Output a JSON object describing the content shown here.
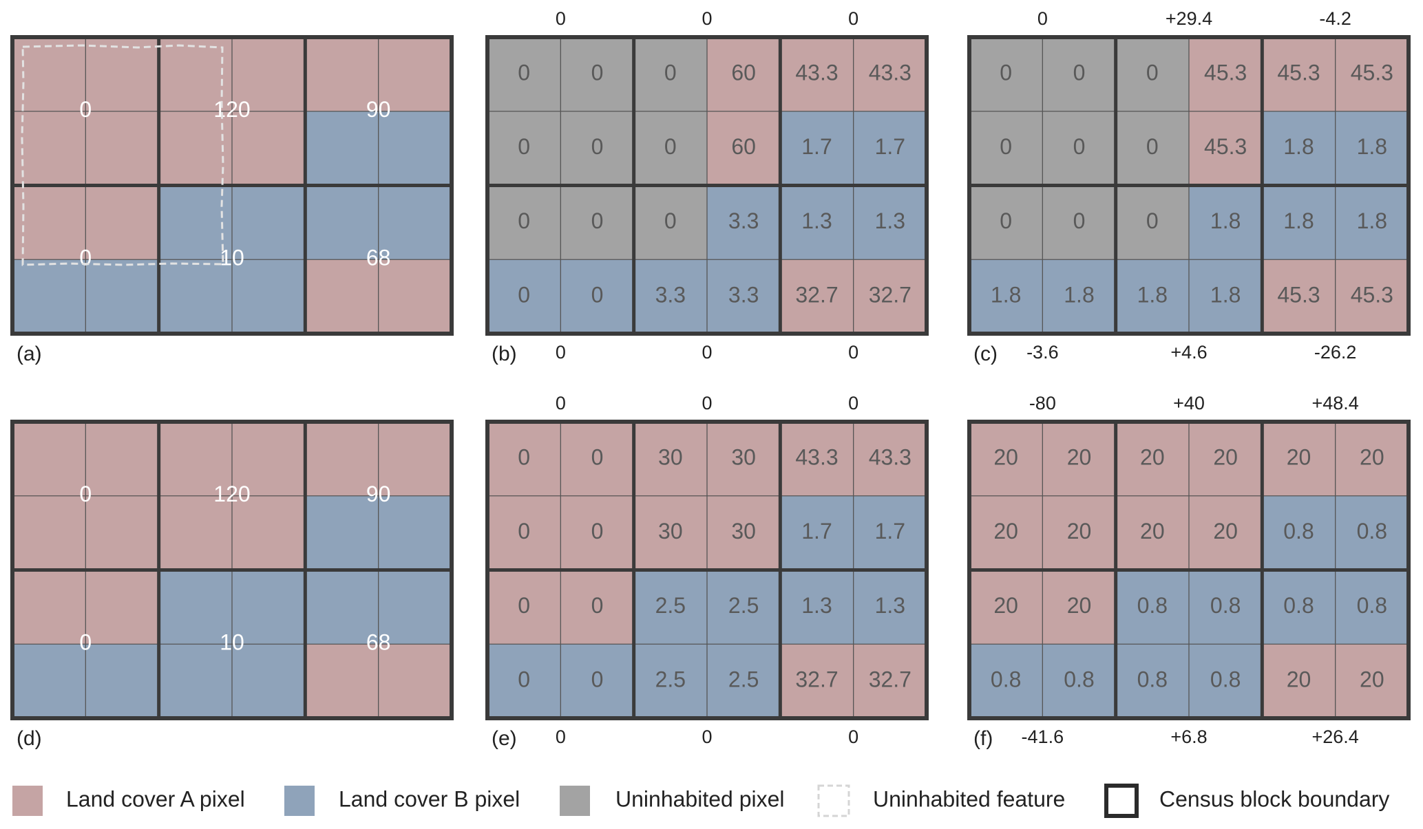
{
  "panels": [
    {
      "label": "(a)",
      "blocks": [
        [
          "0",
          "120",
          "90"
        ],
        [
          "0",
          "10",
          "68"
        ]
      ]
    },
    {
      "label": "(b)",
      "top": [
        "0",
        "0",
        "0"
      ],
      "bottom": [
        "0",
        "0",
        "0"
      ],
      "cells": [
        [
          "0",
          "0",
          "0",
          "60",
          "43.3",
          "43.3"
        ],
        [
          "0",
          "0",
          "0",
          "60",
          "1.7",
          "1.7"
        ],
        [
          "0",
          "0",
          "0",
          "3.3",
          "1.3",
          "1.3"
        ],
        [
          "0",
          "0",
          "3.3",
          "3.3",
          "32.7",
          "32.7"
        ]
      ]
    },
    {
      "label": "(c)",
      "top": [
        "0",
        "+29.4",
        "-4.2"
      ],
      "bottom": [
        "-3.6",
        "+4.6",
        "-26.2"
      ],
      "cells": [
        [
          "0",
          "0",
          "0",
          "45.3",
          "45.3",
          "45.3"
        ],
        [
          "0",
          "0",
          "0",
          "45.3",
          "1.8",
          "1.8"
        ],
        [
          "0",
          "0",
          "0",
          "1.8",
          "1.8",
          "1.8"
        ],
        [
          "1.8",
          "1.8",
          "1.8",
          "1.8",
          "45.3",
          "45.3"
        ]
      ]
    },
    {
      "label": "(d)",
      "blocks": [
        [
          "0",
          "120",
          "90"
        ],
        [
          "0",
          "10",
          "68"
        ]
      ]
    },
    {
      "label": "(e)",
      "top": [
        "0",
        "0",
        "0"
      ],
      "bottom": [
        "0",
        "0",
        "0"
      ],
      "cells": [
        [
          "0",
          "0",
          "30",
          "30",
          "43.3",
          "43.3"
        ],
        [
          "0",
          "0",
          "30",
          "30",
          "1.7",
          "1.7"
        ],
        [
          "0",
          "0",
          "2.5",
          "2.5",
          "1.3",
          "1.3"
        ],
        [
          "0",
          "0",
          "2.5",
          "2.5",
          "32.7",
          "32.7"
        ]
      ]
    },
    {
      "label": "(f)",
      "top": [
        "-80",
        "+40",
        "+48.4"
      ],
      "bottom": [
        "-41.6",
        "+6.8",
        "+26.4"
      ],
      "cells": [
        [
          "20",
          "20",
          "20",
          "20",
          "20",
          "20"
        ],
        [
          "20",
          "20",
          "20",
          "20",
          "0.8",
          "0.8"
        ],
        [
          "20",
          "20",
          "0.8",
          "0.8",
          "0.8",
          "0.8"
        ],
        [
          "0.8",
          "0.8",
          "0.8",
          "0.8",
          "20",
          "20"
        ]
      ]
    }
  ],
  "legend": [
    "Land cover A pixel",
    "Land cover B pixel",
    "Uninhabited pixel",
    "Uninhabited feature",
    "Census block boundary"
  ]
}
